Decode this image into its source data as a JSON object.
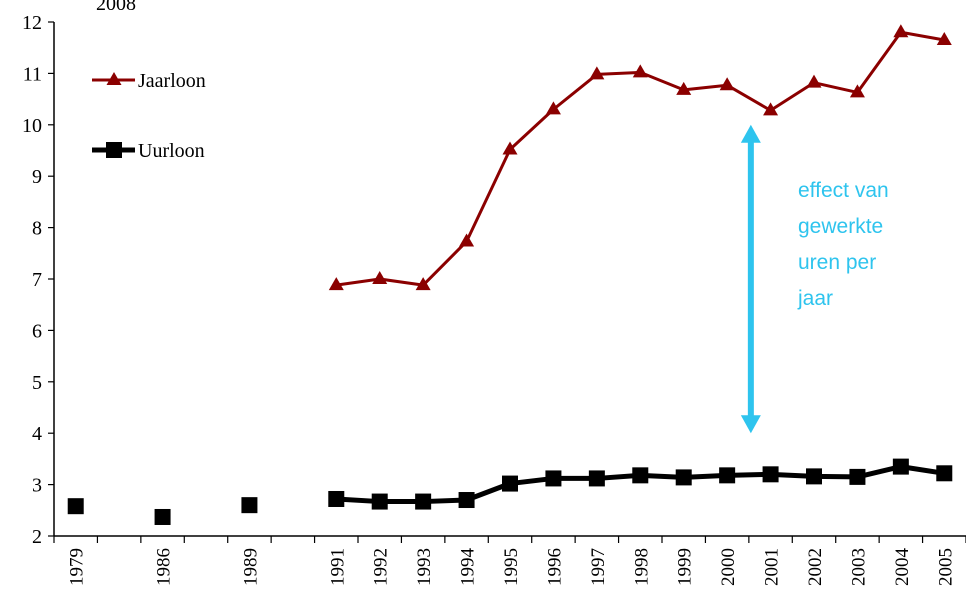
{
  "chart_data": {
    "type": "line",
    "title": "",
    "corner_label": "2008",
    "xlabel": "",
    "ylabel": "",
    "ylim": [
      2,
      12
    ],
    "yticks": [
      2,
      3,
      4,
      5,
      6,
      7,
      8,
      9,
      10,
      11,
      12
    ],
    "categories": [
      "1979",
      "",
      "1986",
      "",
      "1989",
      "",
      "1991",
      "1992",
      "1993",
      "1994",
      "1995",
      "1996",
      "1997",
      "1998",
      "1999",
      "2000",
      "2001",
      "2002",
      "2003",
      "2004",
      "2005"
    ],
    "series": [
      {
        "name": "Jaarloon",
        "color": "#8b0000",
        "marker": "triangle",
        "values": [
          null,
          null,
          null,
          null,
          null,
          null,
          6.88,
          7.0,
          6.88,
          7.73,
          9.52,
          10.3,
          10.98,
          11.02,
          10.68,
          10.77,
          10.28,
          10.82,
          10.63,
          11.8,
          11.65
        ]
      },
      {
        "name": "Uurloon",
        "color": "#000000",
        "marker": "square",
        "values": [
          2.58,
          null,
          2.37,
          null,
          2.6,
          null,
          2.72,
          2.67,
          2.67,
          2.7,
          3.02,
          3.12,
          3.12,
          3.18,
          3.14,
          3.18,
          3.2,
          3.16,
          3.15,
          3.35,
          3.22
        ]
      }
    ],
    "legend": "top-left",
    "grid": false,
    "annotation": {
      "lines": [
        "effect van",
        "gewerkte",
        "uren per",
        "jaar"
      ],
      "color": "#2ec4ee",
      "arrow_from": 4.0,
      "arrow_to": 10.0,
      "arrow_x_category": "2001"
    }
  }
}
